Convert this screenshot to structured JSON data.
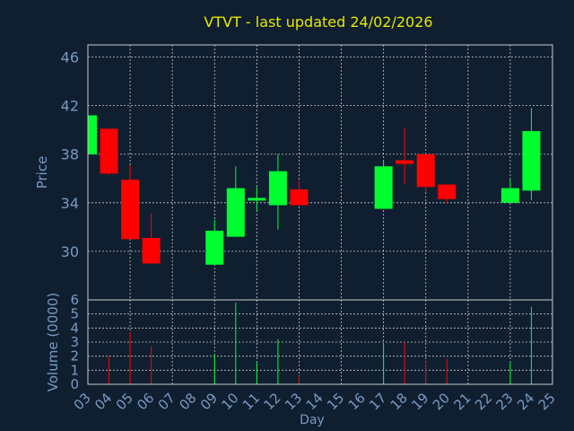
{
  "chart_data": {
    "type": "candlestick",
    "title": "VTVT - last updated 24/02/2026",
    "xlabel": "Day",
    "price_panel": {
      "ylabel": "Price",
      "ylim": [
        26,
        47
      ],
      "yticks": [
        30,
        34,
        38,
        42,
        46
      ]
    },
    "volume_panel": {
      "ylabel": "Volume (0000)",
      "ylim": [
        0,
        6
      ],
      "yticks": [
        0,
        1,
        2,
        3,
        4,
        5,
        6
      ]
    },
    "x_ticks": [
      "03",
      "04",
      "05",
      "06",
      "07",
      "08",
      "09",
      "10",
      "11",
      "12",
      "13",
      "14",
      "15",
      "16",
      "17",
      "18",
      "19",
      "20",
      "21",
      "22",
      "23",
      "24",
      "25"
    ],
    "x_grid_every": 2,
    "colors": {
      "up": "#00ff30",
      "down": "#ff0000",
      "background": "#0f1f30",
      "grid": "#c8c8c8",
      "axis_text": "#7a9ac2",
      "title": "#e8e800"
    },
    "candles": [
      {
        "day": "03",
        "open": 38.0,
        "high": 41.2,
        "low": 38.0,
        "close": 41.2,
        "volume": 0.0
      },
      {
        "day": "04",
        "open": 40.1,
        "high": 40.1,
        "low": 36.3,
        "close": 36.4,
        "volume": 2.0
      },
      {
        "day": "05",
        "open": 35.9,
        "high": 37.1,
        "low": 31.0,
        "close": 31.0,
        "volume": 3.7
      },
      {
        "day": "06",
        "open": 31.1,
        "high": 33.1,
        "low": 29.0,
        "close": 29.0,
        "volume": 2.7
      },
      {
        "day": "09",
        "open": 28.9,
        "high": 32.6,
        "low": 28.9,
        "close": 31.7,
        "volume": 2.1
      },
      {
        "day": "10",
        "open": 31.2,
        "high": 37.0,
        "low": 31.2,
        "close": 35.2,
        "volume": 5.8
      },
      {
        "day": "11",
        "open": 34.2,
        "high": 35.3,
        "low": 33.3,
        "close": 34.4,
        "volume": 1.6
      },
      {
        "day": "12",
        "open": 33.8,
        "high": 38.0,
        "low": 31.8,
        "close": 36.6,
        "volume": 3.2
      },
      {
        "day": "13",
        "open": 35.1,
        "high": 35.8,
        "low": 33.8,
        "close": 33.8,
        "volume": 0.6
      },
      {
        "day": "17",
        "open": 33.5,
        "high": 37.4,
        "low": 33.5,
        "close": 37.0,
        "volume": 2.8
      },
      {
        "day": "18",
        "open": 37.5,
        "high": 40.2,
        "low": 35.5,
        "close": 37.2,
        "volume": 3.0
      },
      {
        "day": "19",
        "open": 38.0,
        "high": 38.0,
        "low": 34.9,
        "close": 35.3,
        "volume": 1.7
      },
      {
        "day": "20",
        "open": 35.5,
        "high": 35.5,
        "low": 33.9,
        "close": 34.3,
        "volume": 1.8
      },
      {
        "day": "23",
        "open": 34.0,
        "high": 35.9,
        "low": 34.0,
        "close": 35.2,
        "volume": 1.6
      },
      {
        "day": "24",
        "open": 35.0,
        "high": 41.8,
        "low": 34.2,
        "close": 39.9,
        "volume": 5.5
      }
    ]
  }
}
